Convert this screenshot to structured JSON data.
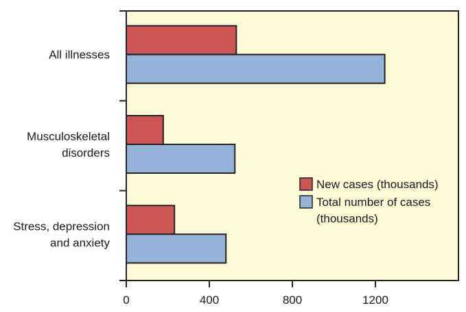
{
  "chart_data": {
    "type": "bar",
    "orientation": "horizontal",
    "categories": [
      [
        "All illnesses"
      ],
      [
        "Musculoskeletal",
        "disorders"
      ],
      [
        "Stress, depression",
        "and anxiety"
      ]
    ],
    "series": [
      {
        "name": "New cases (thousands)",
        "color": "#cd5555",
        "values": [
          530,
          178,
          232
        ]
      },
      {
        "name": "Total number of cases (thousands)",
        "color": "#95b3d7",
        "values": [
          1245,
          523,
          480
        ]
      }
    ],
    "xlim": [
      0,
      1600
    ],
    "xticks": [
      0,
      400,
      800,
      1200
    ],
    "title": "",
    "xlabel": "",
    "ylabel": "",
    "legend": {
      "entries": [
        {
          "lines": [
            "New cases (thousands)"
          ],
          "color": "#cd5555"
        },
        {
          "lines": [
            "Total number of cases",
            "(thousands)"
          ],
          "color": "#95b3d7"
        }
      ],
      "placement": "right"
    },
    "plot_background": "#fffad6",
    "grid": false
  }
}
